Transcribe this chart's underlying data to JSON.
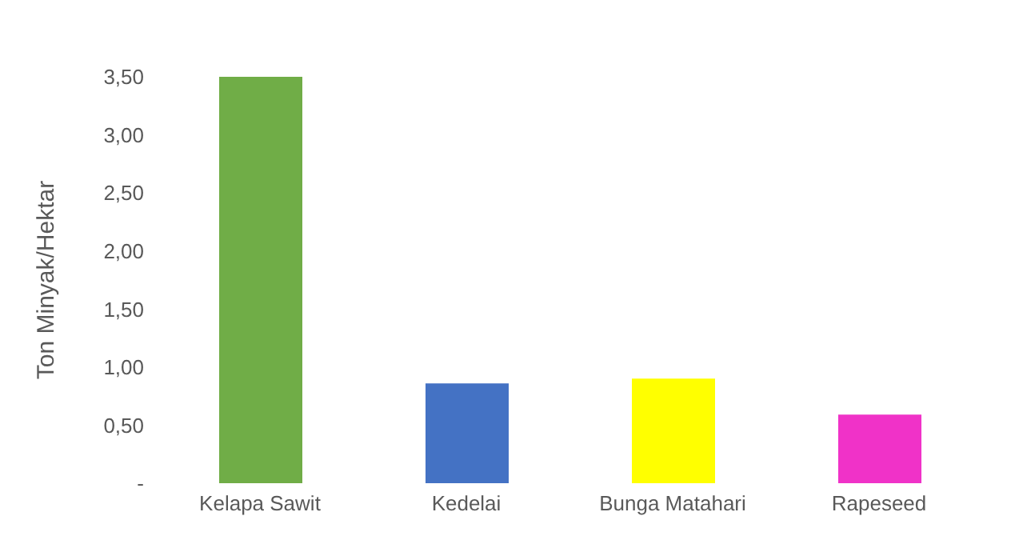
{
  "chart_data": {
    "type": "bar",
    "ylabel": "Ton Minyak/Hektar",
    "categories": [
      "Kelapa Sawit",
      "Kedelai",
      "Bunga Matahari",
      "Rapeseed"
    ],
    "values": [
      3.5,
      0.86,
      0.9,
      0.59
    ],
    "colors": [
      "#70ad47",
      "#4472c4",
      "#ffff00",
      "#f032c8"
    ],
    "ylim": [
      0,
      3.5
    ],
    "yticks": [
      {
        "value": 0,
        "label": "-"
      },
      {
        "value": 0.5,
        "label": "0,50"
      },
      {
        "value": 1,
        "label": "1,00"
      },
      {
        "value": 1.5,
        "label": "1,50"
      },
      {
        "value": 2,
        "label": "2,00"
      },
      {
        "value": 2.5,
        "label": "2,50"
      },
      {
        "value": 3,
        "label": "3,00"
      },
      {
        "value": 3.5,
        "label": "3,50"
      }
    ],
    "grid": false,
    "legend": false
  }
}
